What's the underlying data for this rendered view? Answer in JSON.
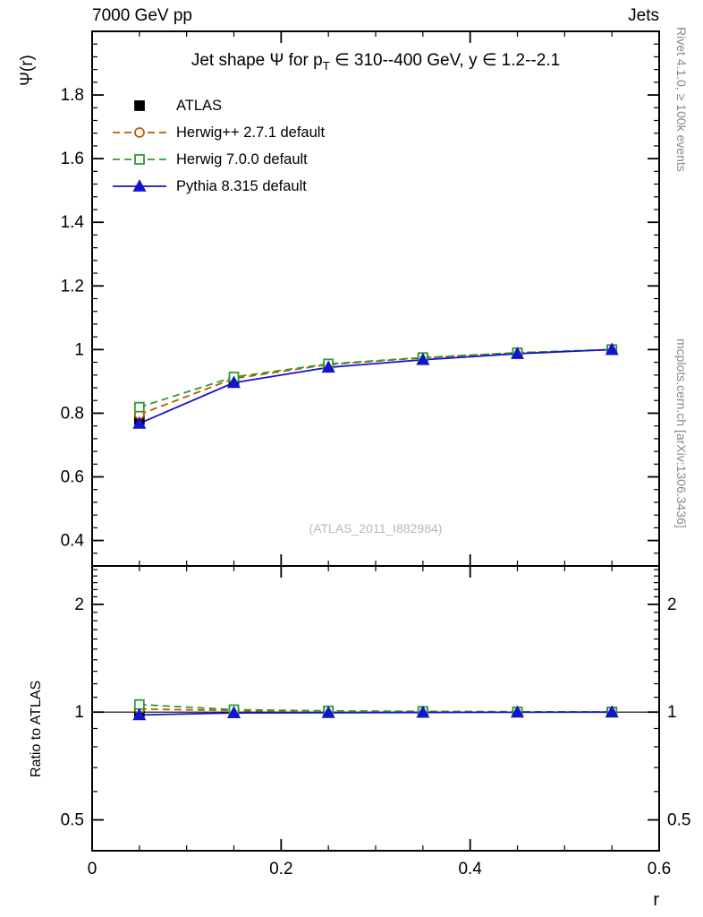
{
  "header": {
    "left": "7000 GeV pp",
    "right": "Jets"
  },
  "right_margin": {
    "top": "Rivet 4.1.0, ≥ 100k events",
    "bottom": "mcplots.cern.ch [arXiv:1306.3436]"
  },
  "watermark": "(ATLAS_2011_I882984)",
  "chart_data": {
    "type": "line",
    "title": {
      "prefix": "Jet shape Ψ for p",
      "sub": "T",
      "suffix": " ∈ 310--400 GeV, y ∈ 1.2--2.1"
    },
    "xlabel": "r",
    "ylabel_main": "Ψ(r)",
    "ylabel_ratio": "Ratio to ATLAS",
    "xlim": [
      0,
      0.6
    ],
    "ylim_main": [
      0.32,
      2.0
    ],
    "ylim_ratio": [
      0.41,
      2.56
    ],
    "ratio_scale": "log",
    "xticks": {
      "major": [
        0,
        0.2,
        0.4,
        0.6
      ],
      "labels": [
        "0",
        "0.2",
        "0.4",
        "0.6"
      ],
      "minor_step": 0.05
    },
    "yticks_main": {
      "major": [
        0.4,
        0.6,
        0.8,
        1.0,
        1.2,
        1.4,
        1.6,
        1.8
      ],
      "labels": [
        "0.4",
        "0.6",
        "0.8",
        "1",
        "1.2",
        "1.4",
        "1.6",
        "1.8"
      ],
      "minor_step": 0.04
    },
    "yticks_ratio": {
      "major": [
        0.5,
        1,
        2
      ],
      "labels": [
        "0.5",
        "1",
        "2"
      ]
    },
    "x": [
      0.05,
      0.15,
      0.25,
      0.35,
      0.45,
      0.55
    ],
    "series": [
      {
        "name": "ATLAS",
        "color": "#000000",
        "marker": "square",
        "fill": "filled",
        "line": "none",
        "values": [
          0.78,
          0.9,
          0.947,
          0.97,
          0.988,
          1.0
        ],
        "ratio": [
          1.0,
          1.0,
          1.0,
          1.0,
          1.0,
          1.0
        ]
      },
      {
        "name": "Herwig++ 2.7.1 default",
        "color": "#c05a00",
        "marker": "circle",
        "fill": "open",
        "line": "dashed",
        "values": [
          0.796,
          0.909,
          0.953,
          0.974,
          0.99,
          1.0
        ],
        "ratio": [
          1.02,
          1.01,
          1.006,
          1.004,
          1.002,
          1.0
        ]
      },
      {
        "name": "Herwig 7.0.0 default",
        "color": "#2e9b2e",
        "marker": "square",
        "fill": "open",
        "line": "dashed",
        "values": [
          0.819,
          0.914,
          0.955,
          0.975,
          0.99,
          1.0
        ],
        "ratio": [
          1.05,
          1.016,
          1.008,
          1.005,
          1.002,
          1.0
        ]
      },
      {
        "name": "Pythia 8.315 default",
        "color": "#1414cc",
        "marker": "triangle",
        "fill": "filled",
        "line": "solid",
        "values": [
          0.768,
          0.896,
          0.944,
          0.968,
          0.987,
          1.0
        ],
        "ratio": [
          0.982,
          0.995,
          0.996,
          0.998,
          0.999,
          1.0
        ]
      }
    ]
  }
}
